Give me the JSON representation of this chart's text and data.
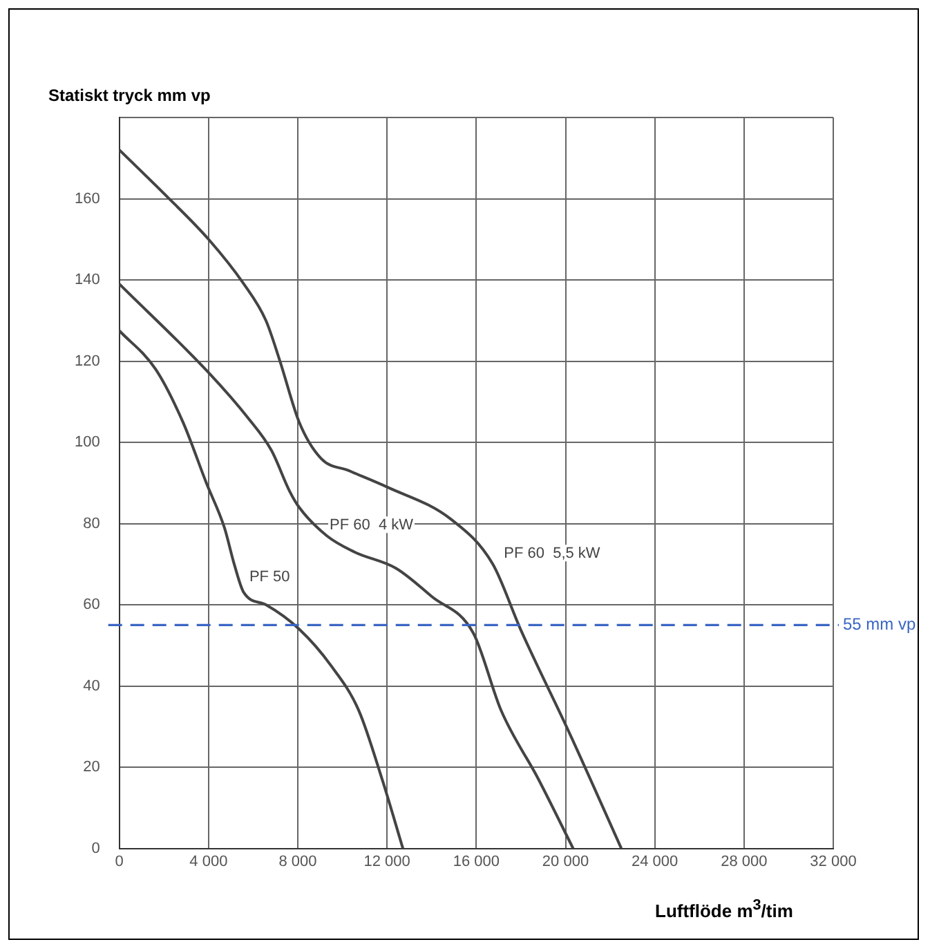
{
  "chart_data": {
    "type": "line",
    "ylabel": "Statiskt tryck  mm vp",
    "xlabel": "Luftflöde  m$^{3}$/tim",
    "xlim": [
      0,
      32000
    ],
    "ylim": [
      0,
      180
    ],
    "xticks": [
      0,
      {
        "value": 4000,
        "label": "4 000"
      },
      {
        "value": 8000,
        "label": "8 000"
      },
      {
        "value": 12000,
        "label": "12 000"
      },
      {
        "value": 16000,
        "label": "16 000"
      },
      {
        "value": 20000,
        "label": "20 000"
      },
      {
        "value": 24000,
        "label": "24 000"
      },
      {
        "value": 28000,
        "label": "28 000"
      },
      {
        "value": 32000,
        "label": "32 000"
      }
    ],
    "yticks": [
      0,
      20,
      40,
      60,
      80,
      100,
      120,
      140,
      160,
      {
        "value": 180,
        "label": null
      }
    ],
    "grid": true,
    "legend": false,
    "marker": "none",
    "line_style": "solid",
    "series": [
      {
        "name": "PF 50",
        "color": "#444444",
        "x": [
          0,
          1630,
          2850,
          3900,
          4710,
          5150,
          5580,
          6570,
          8060,
          9490,
          10730,
          11780,
          12710
        ],
        "values": [
          127.5,
          118,
          105,
          90,
          79,
          70,
          63,
          60,
          54,
          45,
          34,
          17,
          0
        ]
      },
      {
        "name": "PF 60  4 kW",
        "color": "#444444",
        "x": [
          0,
          4030,
          5770,
          6820,
          7630,
          8060,
          9300,
          10540,
          12400,
          14010,
          15870,
          17110,
          18790,
          20340
        ],
        "values": [
          139,
          117,
          106,
          98,
          88,
          84,
          77,
          73,
          69,
          62,
          53,
          34,
          17,
          0
        ]
      },
      {
        "name": "PF 60  5,5 kW",
        "color": "#444444",
        "x": [
          0,
          2050,
          4000,
          5580,
          6570,
          7200,
          8060,
          9050,
          10300,
          12000,
          14880,
          16740,
          17980,
          20210,
          22500
        ],
        "values": [
          172,
          161,
          150,
          139,
          130,
          120,
          105,
          96,
          93,
          89,
          81,
          70,
          54,
          28,
          0
        ]
      }
    ],
    "ref_lines": [
      {
        "axis": "y",
        "value": 55,
        "label": "55 mm vp",
        "color": "#3a66c4",
        "line_style": "dashed"
      }
    ]
  }
}
